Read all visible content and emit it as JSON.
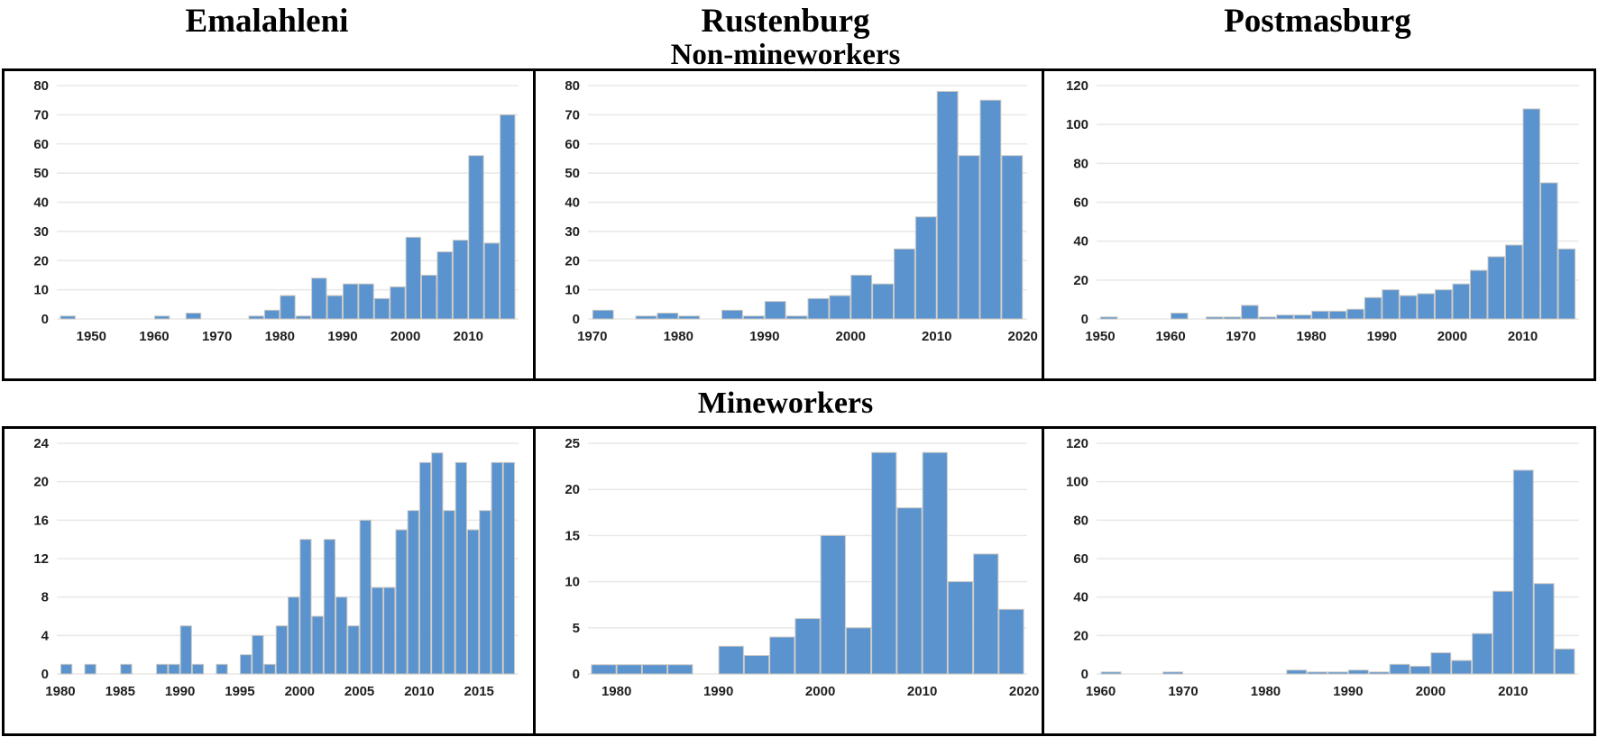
{
  "titles": {
    "col1": "Emalahleni",
    "col2": "Rustenburg",
    "col3": "Postmasburg",
    "row1": "Non-mineworkers",
    "row2": "Mineworkers"
  },
  "colors": {
    "bar": "#5b93ce",
    "bar_stroke": "#ccc9c4",
    "grid": "#e8e8e6",
    "text": "#1f1f1f",
    "panel_border": "#000000",
    "background": "#ffffff"
  },
  "chart_data": [
    {
      "id": "emalahleni-non-mineworkers",
      "title": "Emalahleni Non-mineworkers",
      "type": "bar",
      "bin_start": 1945,
      "bin_width": 2.5,
      "values": [
        1,
        0,
        0,
        0,
        0,
        0,
        1,
        0,
        2,
        0,
        0,
        0,
        1,
        3,
        8,
        1,
        14,
        8,
        12,
        12,
        7,
        11,
        28,
        15,
        23,
        27,
        56,
        26,
        70
      ],
      "xticks": [
        1950,
        1960,
        1970,
        1980,
        1990,
        2000,
        2010
      ],
      "yticks": [
        0,
        10,
        20,
        30,
        40,
        50,
        60,
        70,
        80
      ],
      "xlim": [
        1944.5,
        2018
      ],
      "ylim": [
        0,
        80
      ],
      "ystep": 10,
      "grid": true,
      "legend": "none"
    },
    {
      "id": "rustenburg-non-mineworkers",
      "title": "Rustenburg Non-mineworkers",
      "type": "bar",
      "bin_start": 1970,
      "bin_width": 2.5,
      "values": [
        3,
        0,
        1,
        2,
        1,
        0,
        3,
        1,
        6,
        1,
        7,
        8,
        15,
        12,
        24,
        35,
        78,
        56,
        75,
        56
      ],
      "xticks": [
        1970,
        1980,
        1990,
        2000,
        2010,
        2020
      ],
      "yticks": [
        0,
        10,
        20,
        30,
        40,
        50,
        60,
        70,
        80
      ],
      "xlim": [
        1969.5,
        2020.5
      ],
      "ylim": [
        0,
        80
      ],
      "ystep": 10,
      "grid": true,
      "legend": "none"
    },
    {
      "id": "postmasburg-non-mineworkers",
      "title": "Postmasburg Non-mineworkers",
      "type": "bar",
      "bin_start": 1950,
      "bin_width": 2.5,
      "values": [
        1,
        0,
        0,
        0,
        3,
        0,
        1,
        1,
        7,
        1,
        2,
        2,
        4,
        4,
        5,
        11,
        15,
        12,
        13,
        15,
        18,
        25,
        32,
        38,
        108,
        70,
        36
      ],
      "xticks": [
        1950,
        1960,
        1970,
        1980,
        1990,
        2000,
        2010
      ],
      "yticks": [
        0,
        20,
        40,
        60,
        80,
        100,
        120
      ],
      "xlim": [
        1949.5,
        2018
      ],
      "ylim": [
        0,
        120
      ],
      "ystep": 20,
      "grid": true,
      "legend": "none"
    },
    {
      "id": "emalahleni-mineworkers",
      "title": "Emalahleni Mineworkers",
      "type": "bar",
      "bin_start": 1980,
      "bin_width": 1,
      "values": [
        1,
        0,
        1,
        0,
        0,
        1,
        0,
        0,
        1,
        1,
        5,
        1,
        0,
        1,
        0,
        2,
        4,
        1,
        5,
        8,
        14,
        6,
        14,
        8,
        5,
        16,
        9,
        9,
        15,
        17,
        22,
        23,
        17,
        22,
        15,
        17,
        22,
        22
      ],
      "xticks": [
        1980,
        1985,
        1990,
        1995,
        2000,
        2005,
        2010,
        2015
      ],
      "yticks": [
        0,
        4,
        8,
        12,
        16,
        20,
        24
      ],
      "xlim": [
        1979.7,
        2018.3
      ],
      "ylim": [
        0,
        24
      ],
      "ystep": 4,
      "grid": true,
      "legend": "none"
    },
    {
      "id": "rustenburg-mineworkers",
      "title": "Rustenburg Mineworkers",
      "type": "bar",
      "bin_start": 1977.5,
      "bin_width": 2.5,
      "values": [
        1,
        1,
        1,
        1,
        0,
        3,
        2,
        4,
        6,
        15,
        5,
        24,
        18,
        24,
        10,
        13,
        7
      ],
      "xticks": [
        1980,
        1990,
        2000,
        2010,
        2020
      ],
      "yticks": [
        0,
        5,
        10,
        15,
        20,
        25
      ],
      "xlim": [
        1977.2,
        2020.3
      ],
      "ylim": [
        0,
        25
      ],
      "ystep": 5,
      "grid": true,
      "legend": "none"
    },
    {
      "id": "postmasburg-mineworkers",
      "title": "Postmasburg Mineworkers",
      "type": "bar",
      "bin_start": 1960,
      "bin_width": 2.5,
      "values": [
        1,
        0,
        0,
        1,
        0,
        0,
        0,
        0,
        0,
        2,
        1,
        1,
        2,
        1,
        5,
        4,
        11,
        7,
        21,
        43,
        106,
        47,
        13
      ],
      "xticks": [
        1960,
        1970,
        1980,
        1990,
        2000,
        2010
      ],
      "yticks": [
        0,
        20,
        40,
        60,
        80,
        100,
        120
      ],
      "xlim": [
        1959.5,
        2018
      ],
      "ylim": [
        0,
        120
      ],
      "ystep": 20,
      "grid": true,
      "legend": "none"
    }
  ]
}
